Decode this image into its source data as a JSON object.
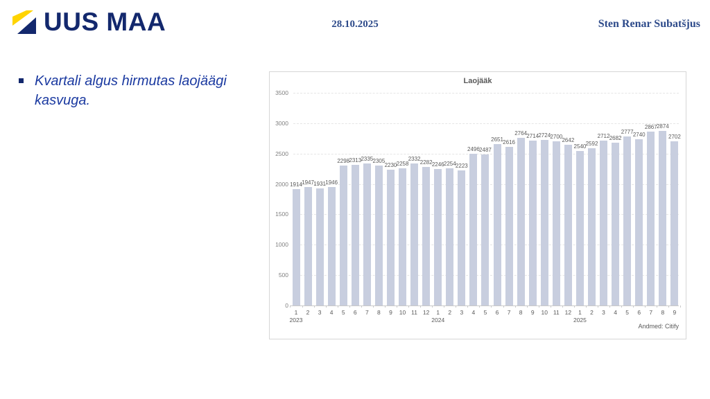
{
  "header": {
    "logo_text": "UUS MAA",
    "date": "28.10.2025",
    "presenter": "Sten Renar Subatšjus"
  },
  "content": {
    "bullet": "Kvartali algus hirmutas laojäägi kasvuga."
  },
  "chart_data": {
    "type": "bar",
    "title": "Laojääk",
    "source": "Andmed: Citify",
    "categories": [
      "1",
      "2",
      "3",
      "4",
      "5",
      "6",
      "7",
      "8",
      "9",
      "10",
      "11",
      "12",
      "1",
      "2",
      "3",
      "4",
      "5",
      "6",
      "7",
      "8",
      "9",
      "10",
      "11",
      "12",
      "1",
      "2",
      "3",
      "4",
      "5",
      "6",
      "7",
      "8",
      "9"
    ],
    "values": [
      1914,
      1947,
      1931,
      1946,
      2298,
      2313,
      2335,
      2305,
      2230,
      2258,
      2332,
      2282,
      2246,
      2254,
      2223,
      2496,
      2487,
      2651,
      2616,
      2764,
      2714,
      2724,
      2700,
      2642,
      2540,
      2592,
      2712,
      2682,
      2777,
      2740,
      2867,
      2874,
      2702
    ],
    "year_labels": [
      {
        "index": 0,
        "label": "2023"
      },
      {
        "index": 12,
        "label": "2024"
      },
      {
        "index": 24,
        "label": "2025"
      }
    ],
    "ylim": [
      0,
      3500
    ],
    "yticks": [
      0,
      500,
      1000,
      1500,
      2000,
      2500,
      3000,
      3500
    ],
    "show_value_labels": true,
    "grid": true,
    "legend_position": "none",
    "bar_color": "#c8cedf"
  },
  "colors": {
    "brand_navy": "#13286d",
    "brand_yellow": "#ffd400",
    "header_text": "#2d4a8a",
    "bullet_text": "#1a39a0",
    "chart_text": "#595959",
    "bar_fill": "#c8cedf"
  }
}
